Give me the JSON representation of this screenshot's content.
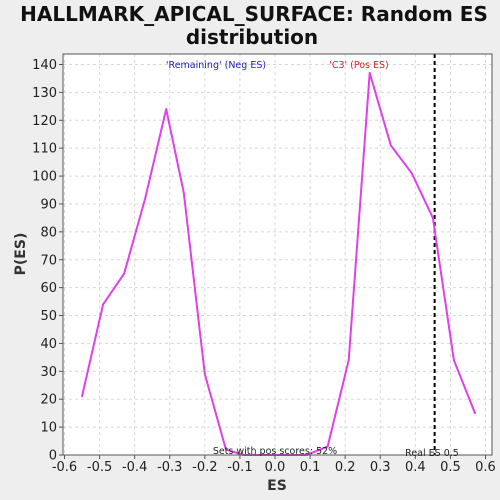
{
  "title_lines": [
    "HALLMARK_APICAL_SURFACE: Random ES",
    "distribution"
  ],
  "chart_data": {
    "type": "line",
    "title": "HALLMARK_APICAL_SURFACE: Random ES distribution",
    "xlabel": "ES",
    "ylabel": "P(ES)",
    "xlim": [
      -0.6,
      0.6
    ],
    "ylim": [
      0,
      145
    ],
    "xticks": [
      -0.6,
      -0.5,
      -0.4,
      -0.3,
      -0.2,
      -0.1,
      0.0,
      0.1,
      0.2,
      0.3,
      0.4,
      0.5,
      0.6
    ],
    "xtick_labels": [
      "-0.6",
      "-0.5",
      "-0.4",
      "-0.3",
      "-0.2",
      "-0.1",
      "0.0",
      "0.1",
      "0.2",
      "0.3",
      "0.4",
      "0.5",
      "0.6"
    ],
    "yticks": [
      0,
      10,
      20,
      30,
      40,
      50,
      60,
      70,
      80,
      90,
      100,
      110,
      120,
      130,
      140
    ],
    "ytick_labels": [
      "0",
      "10",
      "20",
      "30",
      "40",
      "50",
      "60",
      "70",
      "80",
      "90",
      "100",
      "110",
      "120",
      "130",
      "140"
    ],
    "grid": true,
    "series": [
      {
        "color": "#e040e8",
        "x": [
          -0.55,
          -0.49,
          -0.43,
          -0.37,
          -0.31,
          -0.26,
          -0.2,
          -0.14,
          -0.09,
          -0.03,
          0.03,
          0.09,
          0.15,
          0.21,
          0.27,
          0.33,
          0.39,
          0.45,
          0.51,
          0.57
        ],
        "y": [
          21,
          54,
          65,
          92,
          124,
          94,
          29,
          2,
          0,
          0,
          0,
          0,
          3,
          34,
          137,
          111,
          101,
          85,
          34,
          15
        ]
      }
    ],
    "vline": {
      "x": 0.455,
      "style": "dashed",
      "color": "#000000"
    },
    "annotations": {
      "neg_label": "'Remaining' (Neg ES)",
      "neg_color": "#2222bb",
      "pos_label": "'C3' (Pos ES)",
      "pos_color": "#dd2222",
      "pos_score": "Sets with pos scores: 52%",
      "real_es": "Real ES 0.5"
    }
  }
}
